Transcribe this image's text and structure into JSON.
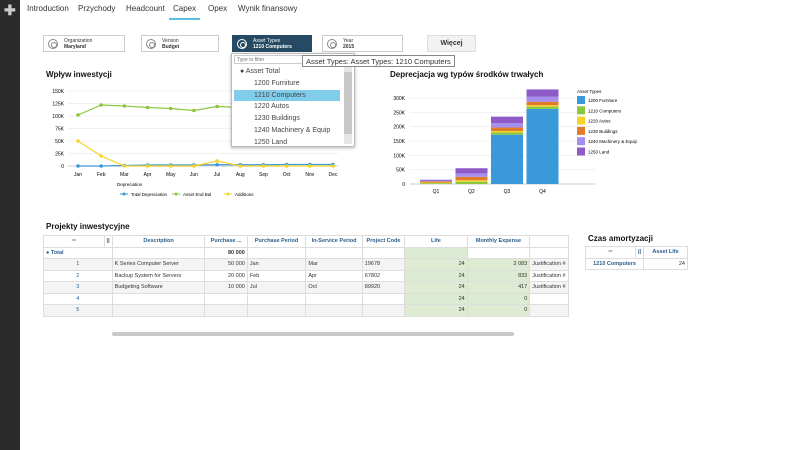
{
  "tabs": [
    "Introduction",
    "Przychody",
    "Headcount",
    "Capex",
    "Opex",
    "Wynik finansowy"
  ],
  "active_tab": "Capex",
  "filters": [
    {
      "label": "Organization",
      "value": "Maryland"
    },
    {
      "label": "Version",
      "value": "Budget"
    },
    {
      "label": "Asset Types",
      "value": "1210 Computers",
      "selected": true
    },
    {
      "label": "Year",
      "value": "2015"
    }
  ],
  "more_button": "Więcej",
  "dropdown": {
    "placeholder": "Type to filter",
    "items": [
      "Asset Total",
      "1200 Furniture",
      "1210 Computers",
      "1220 Autos",
      "1230 Buildings",
      "1240 Machinery & Equip",
      "1250 Land"
    ],
    "highlighted": "1210 Computers"
  },
  "tooltip": "Asset Types: Asset Types: 1210 Computers",
  "line_chart_title": "Wpływ inwestycji",
  "bar_chart_title": "Deprecjacja wg typów środków trwałych",
  "chart_data": [
    {
      "type": "line",
      "title": "Wpływ inwestycji",
      "categories": [
        "Jan",
        "Feb",
        "Mar",
        "Apr",
        "May",
        "Jun",
        "Jul",
        "Aug",
        "Sep",
        "Oct",
        "Nov",
        "Dec"
      ],
      "yticks": [
        "0",
        "25K",
        "50K",
        "75K",
        "100K",
        "125K",
        "150K"
      ],
      "ylim": [
        0,
        150000
      ],
      "legend_title": "Depreciation",
      "legend": "bottom",
      "series": [
        {
          "name": "Total Depreciation",
          "color": "#3a9ad9",
          "values": [
            0,
            0,
            1000,
            2000,
            2000,
            2000,
            2500,
            2500,
            2500,
            3000,
            3000,
            3000
          ]
        },
        {
          "name": "Asset End Bal",
          "color": "#8cc63f",
          "values": [
            102000,
            122000,
            120000,
            117000,
            115000,
            111000,
            119000,
            117000,
            118000,
            118000,
            118000,
            118000
          ]
        },
        {
          "name": "Additions",
          "color": "#f5d327",
          "values": [
            50000,
            20000,
            0,
            0,
            0,
            0,
            10000,
            0,
            0,
            0,
            0,
            0
          ]
        }
      ]
    },
    {
      "type": "bar",
      "stacked": true,
      "title": "Deprecjacja wg typów środków trwałych",
      "categories": [
        "Q1",
        "Q2",
        "Q3",
        "Q4"
      ],
      "yticks": [
        "0",
        "50K",
        "100K",
        "150K",
        "200K",
        "250K",
        "300K"
      ],
      "ylim": [
        0,
        330000
      ],
      "legend_title": "Asset Types",
      "legend": "right",
      "series": [
        {
          "name": "1200 Furniture",
          "color": "#3a9ad9",
          "values": [
            0,
            0,
            172000,
            262000
          ]
        },
        {
          "name": "1210 Computers",
          "color": "#8cc63f",
          "values": [
            3000,
            8000,
            8000,
            8000
          ]
        },
        {
          "name": "1220 Autos",
          "color": "#f5d327",
          "values": [
            2000,
            5000,
            5000,
            5000
          ]
        },
        {
          "name": "1230 Buildings",
          "color": "#e07b2a",
          "values": [
            4000,
            12000,
            12000,
            12000
          ]
        },
        {
          "name": "1240 Machinery & Equip",
          "color": "#a58ef0",
          "values": [
            3000,
            12000,
            15000,
            18000
          ]
        },
        {
          "name": "1250 Land",
          "color": "#8e5bc8",
          "values": [
            3000,
            18000,
            23000,
            25000
          ]
        }
      ]
    }
  ],
  "projects": {
    "title": "Projekty inwestycyjne",
    "columns": [
      "Description",
      "Purchase ...",
      "Purchase Period",
      "In-Service Period",
      "Project Code",
      "Life",
      "Monthly Expense",
      ""
    ],
    "total": {
      "label": "Total",
      "purchase": "80 000"
    },
    "rows": [
      {
        "id": "1",
        "desc": "K Series Computer Server",
        "purchase": "50 000",
        "pp": "Jan",
        "isp": "Mar",
        "code": "19678",
        "life": "24",
        "exp": "2 083",
        "just": "Justification #"
      },
      {
        "id": "2",
        "desc": "Backup System for Servers",
        "purchase": "20 000",
        "pp": "Feb",
        "isp": "Apr",
        "code": "67802",
        "life": "24",
        "exp": "833",
        "just": "Justification #"
      },
      {
        "id": "3",
        "desc": "Budgeting Software",
        "purchase": "10 000",
        "pp": "Jul",
        "isp": "Oct",
        "code": "89920",
        "life": "24",
        "exp": "417",
        "just": "Justification #"
      },
      {
        "id": "4",
        "desc": "",
        "purchase": "",
        "pp": "",
        "isp": "",
        "code": "",
        "life": "24",
        "exp": "0",
        "just": ""
      },
      {
        "id": "5",
        "desc": "",
        "purchase": "",
        "pp": "",
        "isp": "",
        "code": "",
        "life": "24",
        "exp": "0",
        "just": ""
      }
    ]
  },
  "amort": {
    "title": "Czas amortyzacji",
    "column": "Asset Life",
    "row_label": "1210 Computers",
    "value": "24"
  }
}
